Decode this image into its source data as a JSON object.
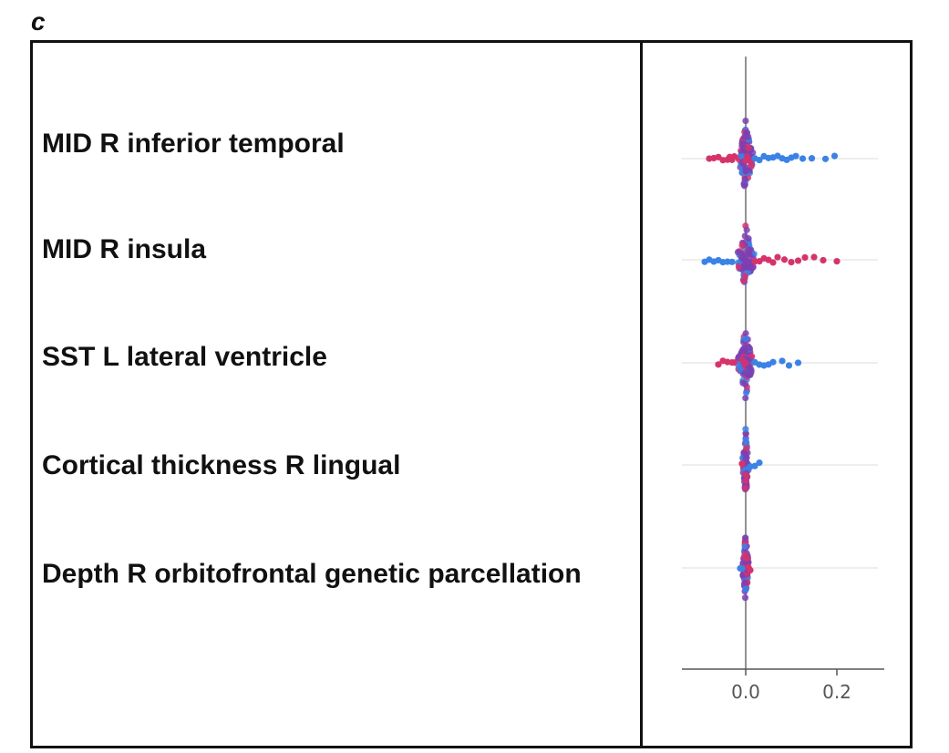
{
  "panel_label": "c",
  "chart_data": {
    "type": "scatter",
    "subtype": "beeswarm",
    "title": "",
    "xlabel": "",
    "ylabel": "",
    "xlim": [
      -0.1,
      0.2
    ],
    "xticks": [
      "0.0",
      "0.2"
    ],
    "xtick_values": [
      0.0,
      0.2
    ],
    "grid": false,
    "colors": {
      "high": "#d6336c",
      "low": "#3b82e6",
      "mid": "#7b3fb3",
      "zero_line": "#777777"
    },
    "features": [
      "MID R inferior temporal",
      "MID R insula",
      "SST L lateral ventricle",
      "Cortical thickness R lingual",
      "Depth R orbitofrontal genetic parcellation"
    ],
    "series": [
      {
        "feature": "MID R inferior temporal",
        "left_points": [
          -0.08,
          -0.07,
          -0.06,
          -0.05,
          -0.04,
          -0.035,
          -0.03,
          -0.025
        ],
        "left_color": "high",
        "right_points": [
          0.02,
          0.03,
          0.04,
          0.05,
          0.06,
          0.07,
          0.08,
          0.09,
          0.1,
          0.11,
          0.125,
          0.145,
          0.175,
          0.195
        ],
        "right_color": "low",
        "core_halfwidth": 0.018
      },
      {
        "feature": "MID R insula",
        "left_points": [
          -0.09,
          -0.08,
          -0.07,
          -0.06,
          -0.05,
          -0.04,
          -0.03
        ],
        "left_color": "low",
        "right_points": [
          0.02,
          0.03,
          0.04,
          0.05,
          0.06,
          0.07,
          0.085,
          0.1,
          0.115,
          0.13,
          0.15,
          0.17,
          0.2
        ],
        "right_color": "high",
        "core_halfwidth": 0.02
      },
      {
        "feature": "SST L lateral ventricle",
        "left_points": [
          -0.06,
          -0.05,
          -0.04,
          -0.03,
          -0.025
        ],
        "left_color": "high",
        "right_points": [
          0.02,
          0.03,
          0.04,
          0.05,
          0.06,
          0.08,
          0.095,
          0.115
        ],
        "right_color": "low",
        "core_halfwidth": 0.018
      },
      {
        "feature": "Cortical thickness R lingual",
        "left_points": [
          -0.008
        ],
        "left_color": "high",
        "right_points": [
          0.01,
          0.02,
          0.03
        ],
        "right_color": "low",
        "core_halfwidth": 0.007
      },
      {
        "feature": "Depth R orbitofrontal genetic parcellation",
        "left_points": [
          -0.012,
          -0.008
        ],
        "left_color": "low",
        "right_points": [
          0.006,
          0.01
        ],
        "right_color": "high",
        "core_halfwidth": 0.007
      }
    ]
  }
}
